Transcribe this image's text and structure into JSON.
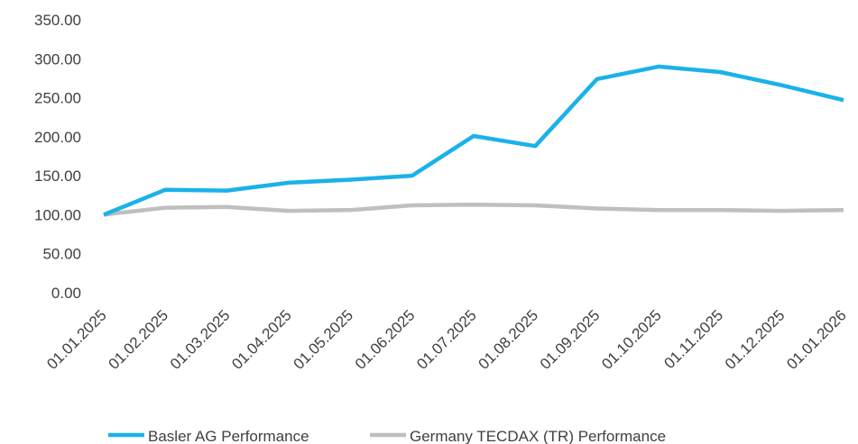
{
  "chart_data": {
    "type": "line",
    "categories": [
      "01.01.2025",
      "01.02.2025",
      "01.03.2025",
      "01.04.2025",
      "01.05.2025",
      "01.06.2025",
      "01.07.2025",
      "01.08.2025",
      "01.09.2025",
      "01.10.2025",
      "01.11.2025",
      "01.12.2025",
      "01.01.2026"
    ],
    "series": [
      {
        "name": "Basler AG Performance",
        "color": "#1ab2e8",
        "values": [
          100,
          132,
          131,
          141,
          145,
          150,
          201,
          188,
          274,
          290,
          283,
          266,
          247
        ]
      },
      {
        "name": "Germany TECDAX (TR) Performance",
        "color": "#bfbfbf",
        "values": [
          100,
          109,
          110,
          105,
          106,
          112,
          113,
          112,
          108,
          106,
          106,
          105,
          106
        ]
      }
    ],
    "ylim": [
      0,
      350
    ],
    "yticks": [
      {
        "value": 0,
        "label": "0.00"
      },
      {
        "value": 50,
        "label": "50.00"
      },
      {
        "value": 100,
        "label": "100.00"
      },
      {
        "value": 150,
        "label": "150.00"
      },
      {
        "value": 200,
        "label": "200.00"
      },
      {
        "value": 250,
        "label": "250.00"
      },
      {
        "value": 300,
        "label": "300.00"
      },
      {
        "value": 350,
        "label": "350.00"
      }
    ],
    "grid": false,
    "legend": "bottom"
  }
}
